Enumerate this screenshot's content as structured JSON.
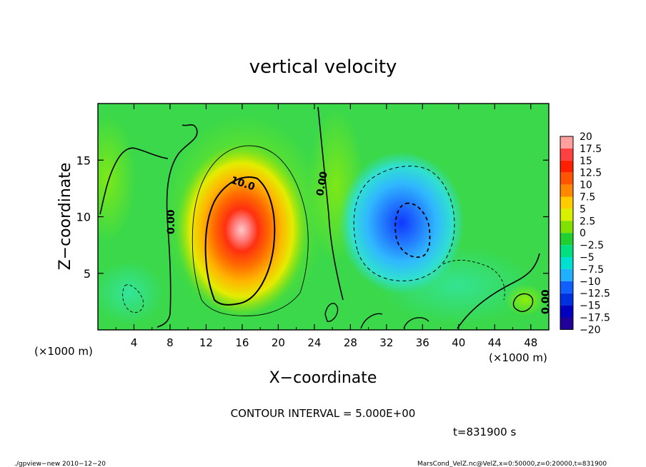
{
  "chart_data": {
    "type": "heatmap",
    "title": "vertical velocity",
    "xlabel": "X−coordinate",
    "ylabel": "Z−coordinate",
    "x_unit": "(×1000 m)",
    "xlim": [
      0,
      50
    ],
    "ylim": [
      0,
      20
    ],
    "x_ticks": [
      "4",
      "8",
      "12",
      "16",
      "20",
      "24",
      "28",
      "32",
      "36",
      "40",
      "44",
      "48"
    ],
    "x_tick_values": [
      4,
      8,
      12,
      16,
      20,
      24,
      28,
      32,
      36,
      40,
      44,
      48
    ],
    "y_ticks": [
      "5",
      "10",
      "15"
    ],
    "y_tick_values": [
      5,
      10,
      15
    ],
    "colorbar": {
      "labels": [
        "20",
        "17.5",
        "15",
        "12.5",
        "10",
        "7.5",
        "5",
        "2.5",
        "0",
        "−2.5",
        "−5",
        "−7.5",
        "−10",
        "−12.5",
        "−15",
        "−17.5",
        "−20"
      ],
      "values": [
        20,
        17.5,
        15,
        12.5,
        10,
        7.5,
        5,
        2.5,
        0,
        -2.5,
        -5,
        -7.5,
        -10,
        -12.5,
        -15,
        -17.5,
        -20
      ],
      "colors": [
        "#ffa0a0",
        "#ff4040",
        "#ff2000",
        "#ff5500",
        "#ff8800",
        "#ffcc00",
        "#d8f000",
        "#80e000",
        "#20d030",
        "#00e080",
        "#00e0d0",
        "#20b0ff",
        "#1060ff",
        "#0030e0",
        "#0000c0",
        "#200098",
        "#6a00a8"
      ]
    },
    "contour_labels": [
      "0.00",
      "0.00",
      "10.0",
      "0.00"
    ],
    "cells": [
      {
        "x": 16,
        "z": 7.5,
        "value": 19
      },
      {
        "x": 16,
        "z": 10,
        "value": 12
      },
      {
        "x": 34.5,
        "z": 8.5,
        "value": -10
      },
      {
        "x": 34.5,
        "z": 11,
        "value": -6
      },
      {
        "x": 46,
        "z": 2,
        "value": 3
      },
      {
        "x": 4,
        "z": 4,
        "value": -2
      }
    ],
    "footer": {
      "contour_interval": "CONTOUR INTERVAL = 5.000E+00",
      "time": "t=831900  s",
      "left_note": "./gpview−new   2010−12−20",
      "right_note": "MarsCond_VelZ.nc@VelZ,x=0:50000,z=0:20000,t=831900"
    }
  }
}
